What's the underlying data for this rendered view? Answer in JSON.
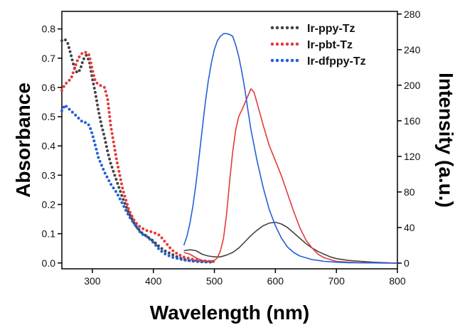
{
  "chart_data": {
    "type": "line",
    "title": "",
    "xlabel": "Wavelength (nm)",
    "ylabel": "Absorbance",
    "y2label": "Intensity (a.u.)",
    "xlim": [
      250,
      800
    ],
    "ylim": [
      -0.02,
      0.86
    ],
    "y2lim": [
      -6.4,
      283
    ],
    "x_ticks": [
      300,
      400,
      500,
      600,
      700,
      800
    ],
    "y_ticks": [
      0.0,
      0.1,
      0.2,
      0.3,
      0.4,
      0.5,
      0.6,
      0.7,
      0.8
    ],
    "y2_ticks": [
      0,
      40,
      80,
      120,
      160,
      200,
      240,
      280
    ],
    "grid": false,
    "legend": {
      "position": "top-right",
      "entries": [
        "Ir-ppy-Tz",
        "Ir-pbt-Tz",
        "Ir-dfppy-Tz"
      ]
    },
    "series": [
      {
        "name": "Ir-ppy-Tz",
        "kind": "absorbance",
        "axis": "left",
        "style": "dotted",
        "color": "#444444",
        "x": [
          250,
          255,
          260,
          265,
          270,
          275,
          280,
          285,
          290,
          295,
          300,
          305,
          310,
          315,
          320,
          325,
          330,
          340,
          350,
          360,
          370,
          380,
          390,
          400,
          410,
          420,
          430,
          440,
          450,
          460,
          470,
          480,
          490,
          500
        ],
        "y": [
          0.76,
          0.765,
          0.75,
          0.71,
          0.67,
          0.65,
          0.66,
          0.695,
          0.71,
          0.69,
          0.63,
          0.58,
          0.52,
          0.47,
          0.43,
          0.38,
          0.34,
          0.28,
          0.22,
          0.17,
          0.13,
          0.105,
          0.09,
          0.075,
          0.055,
          0.04,
          0.03,
          0.02,
          0.012,
          0.008,
          0.005,
          0.004,
          0.003,
          0.003
        ]
      },
      {
        "name": "Ir-pbt-Tz",
        "kind": "absorbance",
        "axis": "left",
        "style": "dotted",
        "color": "#e23b3b",
        "x": [
          250,
          255,
          260,
          265,
          270,
          275,
          280,
          285,
          290,
          295,
          300,
          305,
          310,
          315,
          320,
          325,
          330,
          340,
          350,
          360,
          370,
          380,
          390,
          400,
          410,
          420,
          430,
          440,
          450,
          460,
          470,
          480,
          490,
          500
        ],
        "y": [
          0.59,
          0.61,
          0.62,
          0.63,
          0.66,
          0.69,
          0.71,
          0.72,
          0.72,
          0.71,
          0.66,
          0.62,
          0.61,
          0.605,
          0.6,
          0.56,
          0.47,
          0.35,
          0.25,
          0.18,
          0.14,
          0.12,
          0.11,
          0.105,
          0.095,
          0.07,
          0.045,
          0.03,
          0.02,
          0.015,
          0.01,
          0.008,
          0.006,
          0.005
        ]
      },
      {
        "name": "Ir-dfppy-Tz",
        "kind": "absorbance",
        "axis": "left",
        "style": "dotted",
        "color": "#2460d8",
        "x": [
          250,
          255,
          260,
          265,
          270,
          275,
          280,
          285,
          290,
          295,
          300,
          305,
          310,
          320,
          330,
          340,
          350,
          360,
          370,
          380,
          390,
          400,
          410,
          420,
          430,
          440,
          450,
          460,
          470,
          480,
          490,
          500
        ],
        "y": [
          0.52,
          0.54,
          0.53,
          0.52,
          0.51,
          0.5,
          0.49,
          0.48,
          0.48,
          0.47,
          0.44,
          0.4,
          0.36,
          0.31,
          0.27,
          0.24,
          0.2,
          0.16,
          0.13,
          0.1,
          0.09,
          0.07,
          0.045,
          0.03,
          0.02,
          0.015,
          0.01,
          0.008,
          0.006,
          0.005,
          0.004,
          0.004
        ]
      },
      {
        "name": "Ir-ppy-Tz",
        "kind": "emission",
        "axis": "right",
        "style": "solid",
        "color": "#444444",
        "x": [
          450,
          460,
          470,
          480,
          490,
          500,
          510,
          520,
          530,
          540,
          550,
          560,
          570,
          580,
          590,
          600,
          610,
          620,
          630,
          640,
          650,
          660,
          670,
          680,
          690,
          700,
          720,
          740,
          760,
          780,
          800
        ],
        "y": [
          14,
          15,
          14,
          10,
          8,
          7,
          7,
          9,
          12,
          17,
          24,
          31,
          37,
          42,
          45,
          46,
          44,
          40,
          34,
          28,
          22,
          17,
          13,
          10,
          7,
          5,
          3,
          2,
          1,
          0.5,
          0
        ]
      },
      {
        "name": "Ir-pbt-Tz",
        "kind": "emission",
        "axis": "right",
        "style": "solid",
        "color": "#e23b3b",
        "x": [
          450,
          460,
          470,
          480,
          490,
          500,
          505,
          510,
          515,
          520,
          525,
          530,
          535,
          540,
          545,
          550,
          555,
          560,
          565,
          570,
          580,
          590,
          600,
          610,
          620,
          630,
          640,
          650,
          660,
          670,
          680,
          690,
          700,
          720,
          740,
          760,
          780,
          800
        ],
        "y": [
          12,
          10,
          6,
          3,
          2,
          3,
          6,
          14,
          28,
          55,
          92,
          125,
          150,
          165,
          172,
          180,
          188,
          196,
          192,
          180,
          155,
          132,
          115,
          98,
          78,
          58,
          40,
          26,
          17,
          10,
          6,
          4,
          2,
          1,
          0.5,
          0.3,
          0.2,
          0
        ]
      },
      {
        "name": "Ir-dfppy-Tz",
        "kind": "emission",
        "axis": "right",
        "style": "solid",
        "color": "#2460d8",
        "x": [
          450,
          455,
          460,
          465,
          470,
          475,
          480,
          485,
          490,
          495,
          500,
          505,
          510,
          515,
          520,
          525,
          530,
          535,
          540,
          545,
          550,
          555,
          560,
          570,
          580,
          590,
          600,
          610,
          620,
          630,
          640,
          650,
          660,
          670,
          680,
          690,
          700,
          720,
          740,
          760,
          780,
          800
        ],
        "y": [
          20,
          30,
          45,
          65,
          90,
          120,
          150,
          180,
          205,
          225,
          240,
          250,
          255,
          258,
          258,
          257,
          255,
          245,
          232,
          215,
          195,
          172,
          150,
          115,
          85,
          60,
          42,
          28,
          18,
          12,
          8,
          6,
          4,
          3,
          2,
          1.5,
          1,
          0.5,
          0.3,
          0.2,
          0.1,
          0
        ]
      }
    ]
  }
}
